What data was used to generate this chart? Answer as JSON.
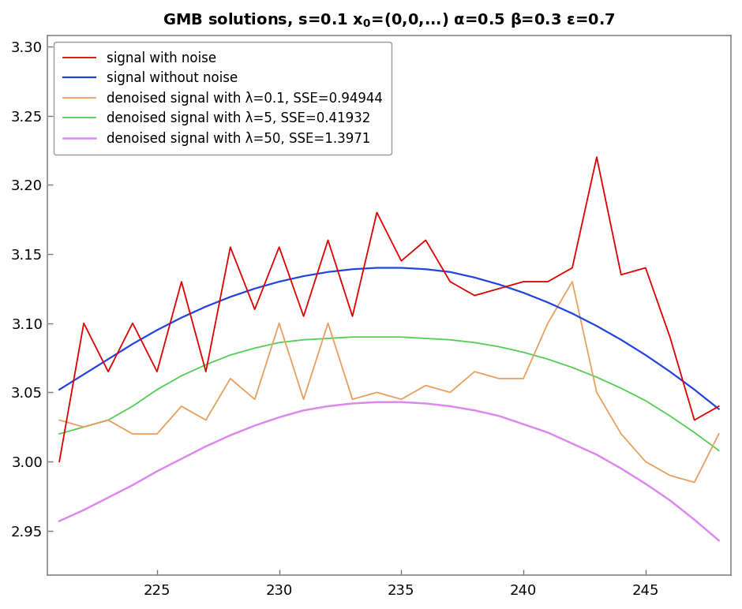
{
  "xlim": [
    220.5,
    248.5
  ],
  "ylim": [
    2.918,
    3.308
  ],
  "xticks": [
    225,
    230,
    235,
    240,
    245
  ],
  "yticks": [
    2.95,
    3.0,
    3.05,
    3.1,
    3.15,
    3.2,
    3.25,
    3.3
  ],
  "legend_labels": [
    "signal with noise",
    "signal without noise",
    "denoised signal with λ=0.1, SSE=0.94944",
    "denoised signal with λ=5, SSE=0.41932",
    "denoised signal with λ=50, SSE=1.3971"
  ],
  "line_colors": [
    "#dd0000",
    "#2244dd",
    "#e8a060",
    "#55cc55",
    "#dd88ee"
  ],
  "line_widths": [
    1.3,
    1.6,
    1.3,
    1.3,
    1.8
  ],
  "background_color": "#ffffff",
  "title_fontsize": 14,
  "tick_fontsize": 13,
  "legend_fontsize": 12,
  "red_y": [
    3.0,
    3.1,
    3.065,
    3.1,
    3.065,
    3.13,
    3.065,
    3.155,
    3.11,
    3.155,
    3.105,
    3.16,
    3.105,
    3.18,
    3.145,
    3.16,
    3.13,
    3.12,
    3.125,
    3.13,
    3.13,
    3.14,
    3.22,
    3.135,
    3.14,
    3.09,
    3.03,
    3.04
  ],
  "blue_y": [
    3.052,
    3.063,
    3.074,
    3.085,
    3.095,
    3.104,
    3.112,
    3.119,
    3.125,
    3.13,
    3.134,
    3.137,
    3.139,
    3.14,
    3.14,
    3.139,
    3.137,
    3.133,
    3.128,
    3.122,
    3.115,
    3.107,
    3.098,
    3.088,
    3.077,
    3.065,
    3.052,
    3.038
  ],
  "orange_y": [
    3.03,
    3.025,
    3.03,
    3.02,
    3.02,
    3.04,
    3.03,
    3.06,
    3.045,
    3.1,
    3.045,
    3.1,
    3.045,
    3.05,
    3.045,
    3.055,
    3.05,
    3.065,
    3.06,
    3.06,
    3.1,
    3.13,
    3.05,
    3.02,
    3.0,
    2.99,
    2.985,
    3.02
  ],
  "green_y": [
    3.02,
    3.025,
    3.03,
    3.04,
    3.052,
    3.062,
    3.07,
    3.077,
    3.082,
    3.086,
    3.088,
    3.089,
    3.09,
    3.09,
    3.09,
    3.089,
    3.088,
    3.086,
    3.083,
    3.079,
    3.074,
    3.068,
    3.061,
    3.053,
    3.044,
    3.033,
    3.021,
    3.008
  ],
  "magenta_y": [
    2.957,
    2.965,
    2.974,
    2.983,
    2.993,
    3.002,
    3.011,
    3.019,
    3.026,
    3.032,
    3.037,
    3.04,
    3.042,
    3.043,
    3.043,
    3.042,
    3.04,
    3.037,
    3.033,
    3.027,
    3.021,
    3.013,
    3.005,
    2.995,
    2.984,
    2.972,
    2.958,
    2.943
  ]
}
